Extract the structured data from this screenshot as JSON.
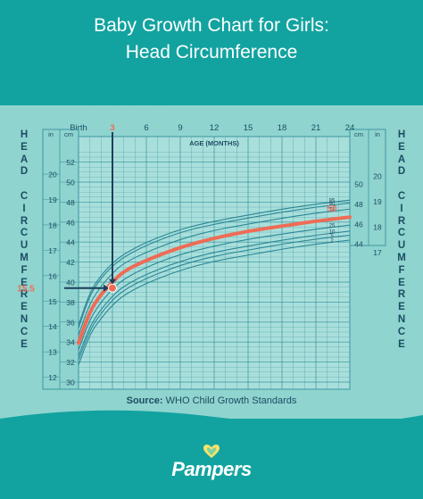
{
  "title": {
    "line1": "Baby Growth Chart for Girls:",
    "line2": "Head Circumference"
  },
  "side_label": {
    "word1": "HEAD",
    "word2": "CIRCUMFERENCE"
  },
  "source_label": "Source:",
  "source_text": "WHO Child Growth Standards",
  "brand": "Pampers",
  "colors": {
    "header": "#12a3a0",
    "panel": "#8fd4cf",
    "grid": "#3d96a2",
    "text": "#1c4c63",
    "highlight": "#ef6b55"
  },
  "chart_data": {
    "type": "line",
    "title": "",
    "xlabel": "AGE (MONTHS)",
    "ylabel": "",
    "x_tick_labels": [
      "Birth",
      "3",
      "6",
      "9",
      "12",
      "15",
      "18",
      "21",
      "24"
    ],
    "x_ticks": [
      0,
      3,
      6,
      9,
      12,
      15,
      18,
      21,
      24
    ],
    "xlim": [
      0,
      24
    ],
    "ylim": [
      30,
      53
    ],
    "y_cm_ticks": [
      30,
      32,
      34,
      36,
      38,
      40,
      42,
      44,
      46,
      48,
      50,
      52
    ],
    "y_in_ticks": [
      12,
      13,
      14,
      15,
      16,
      17,
      18,
      19,
      20
    ],
    "left_unit_in": "in",
    "left_unit_cm": "cm",
    "right_unit_in": "in",
    "right_unit_cm": "cm",
    "right_cm_ticks": [
      44,
      46,
      48,
      50
    ],
    "right_in_ticks": [
      17,
      18,
      19,
      20
    ],
    "x": [
      0,
      1,
      2,
      3,
      4,
      6,
      9,
      12,
      15,
      18,
      21,
      24
    ],
    "series": [
      {
        "name": "95",
        "values": [
          35.7,
          39.0,
          40.7,
          41.9,
          42.8,
          44.0,
          45.3,
          46.1,
          46.7,
          47.3,
          47.8,
          48.2
        ]
      },
      {
        "name": "90",
        "values": [
          35.4,
          38.7,
          40.4,
          41.6,
          42.5,
          43.7,
          45.0,
          45.8,
          46.4,
          47.0,
          47.5,
          47.9
        ]
      },
      {
        "name": "75",
        "values": [
          34.7,
          37.9,
          39.6,
          40.9,
          41.9,
          43.0,
          44.3,
          45.2,
          45.8,
          46.4,
          46.9,
          47.3
        ]
      },
      {
        "name": "50",
        "values": [
          33.9,
          37.1,
          38.8,
          40.0,
          41.1,
          42.2,
          43.5,
          44.4,
          45.1,
          45.6,
          46.1,
          46.5
        ]
      },
      {
        "name": "25",
        "values": [
          33.2,
          36.3,
          38.0,
          39.3,
          40.3,
          41.5,
          42.8,
          43.6,
          44.3,
          44.8,
          45.3,
          45.7
        ]
      },
      {
        "name": "10",
        "values": [
          32.6,
          35.6,
          37.3,
          38.6,
          39.6,
          40.8,
          42.1,
          43.0,
          43.6,
          44.2,
          44.7,
          45.1
        ]
      },
      {
        "name": "5",
        "values": [
          32.2,
          35.2,
          36.9,
          38.2,
          39.2,
          40.4,
          41.7,
          42.6,
          43.2,
          43.8,
          44.3,
          44.7
        ]
      },
      {
        "name": "2",
        "values": [
          31.7,
          34.8,
          36.4,
          37.7,
          38.7,
          39.9,
          41.2,
          42.1,
          42.7,
          43.3,
          43.8,
          44.2
        ]
      }
    ],
    "highlight_series": "50",
    "highlight_label": "50",
    "marker": {
      "x": 3,
      "y_in": 15.5,
      "y_cm": 39.4
    },
    "marker_x_label": "3",
    "marker_y_label": "15.5"
  }
}
